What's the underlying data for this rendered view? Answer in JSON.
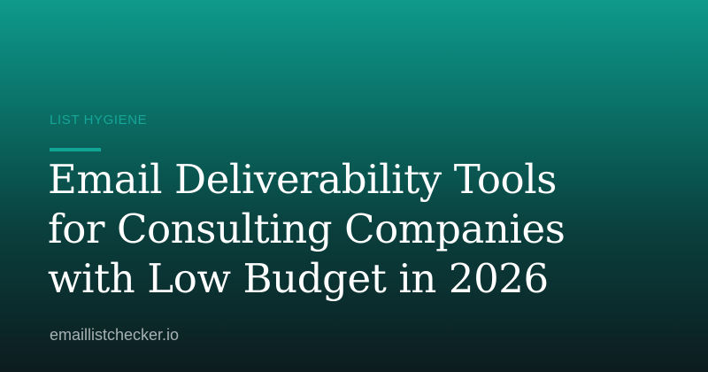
{
  "category": "LIST HYGIENE",
  "title_lines": [
    "Email Deliverability Tools",
    "for Consulting Companies",
    "with Low Budget in 2026"
  ],
  "site": "emaillistchecker.io",
  "colors": {
    "gradient_top": "#0e9a8b",
    "gradient_bottom": "#0c1c1f",
    "accent": "#12a593",
    "title_text": "#ffffff",
    "site_text": "#a7b1b3"
  }
}
